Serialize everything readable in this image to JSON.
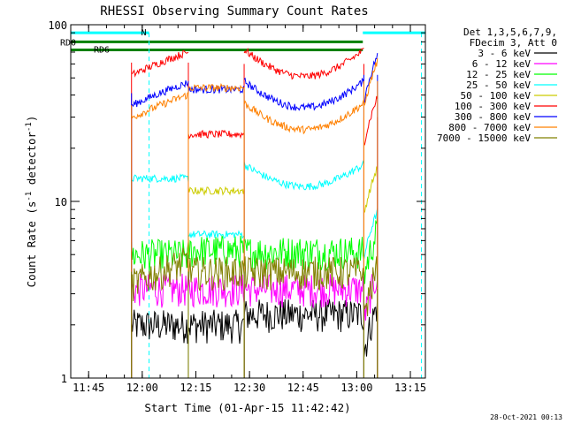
{
  "chart_data": {
    "type": "line",
    "title": "RHESSI Observing Summary Count Rates",
    "xlabel": "Start Time (01-Apr-15 11:42:42)",
    "ylabel": "Count Rate (s⁻¹ detector⁻¹)",
    "ylabel_parts": [
      "Count Rate (s",
      "-1",
      " detector",
      "-1",
      ")"
    ],
    "yscale": "log",
    "xlim_min": [
      -2.7,
      96.5
    ],
    "ylim": [
      1,
      100
    ],
    "x_ticks": [
      {
        "min": 2.3,
        "label": "11:45"
      },
      {
        "min": 17.3,
        "label": "12:00"
      },
      {
        "min": 32.3,
        "label": "12:15"
      },
      {
        "min": 47.3,
        "label": "12:30"
      },
      {
        "min": 62.3,
        "label": "12:45"
      },
      {
        "min": 77.3,
        "label": "13:00"
      },
      {
        "min": 92.3,
        "label": "13:15"
      }
    ],
    "y_ticks": [
      {
        "value": 1,
        "label": "1"
      },
      {
        "value": 10,
        "label": "10"
      },
      {
        "value": 100,
        "label": "100"
      }
    ],
    "legend_header": [
      "Det 1,3,5,6,7,9,",
      "FDecim 3, Att 0"
    ],
    "legend_placement": "right",
    "timestamp": "28-Oct-2021 00:13",
    "flags": [
      {
        "label": "N",
        "color": "#00ffff",
        "segments": [
          [
            -2.7,
            19.2
          ],
          [
            79.0,
            96.5
          ]
        ],
        "y": 90
      },
      {
        "label": "RD0",
        "color": "#008000",
        "segments": [
          [
            -2.7,
            79.0
          ]
        ],
        "y": 80
      },
      {
        "label": "RD6",
        "color": "#008000",
        "segments": [
          [
            -2.7,
            79.0
          ]
        ],
        "y": 72
      }
    ],
    "night_markers_min": [
      19.2,
      95.4
    ],
    "intervals_min": [
      [
        14.3,
        30.2
      ],
      [
        30.2,
        45.8
      ],
      [
        45.8,
        79.3
      ],
      [
        79.3,
        83.1
      ]
    ],
    "series": [
      {
        "name": "3 - 6 keV",
        "color": "#000000",
        "values": [
          2.0,
          2.0,
          2.3,
          2.0
        ]
      },
      {
        "name": "6 - 12 keV",
        "color": "#ff00ff",
        "values": [
          3.2,
          3.2,
          3.2,
          3.0
        ]
      },
      {
        "name": "12 - 25 keV",
        "color": "#00ff00",
        "values": [
          5.0,
          5.3,
          5.2,
          5.3
        ]
      },
      {
        "name": "25 - 50 keV",
        "color": "#00ffff",
        "values": [
          13.5,
          6.5,
          13.5,
          6.8
        ]
      },
      {
        "name": "50 - 100 keV",
        "color": "#cccc00",
        "values": [
          null,
          11.5,
          null,
          12.0
        ]
      },
      {
        "name": "100 - 300 keV",
        "color": "#ff0000",
        "values": [
          61.0,
          24.0,
          60.0,
          30.0
        ]
      },
      {
        "name": "300 - 800 keV",
        "color": "#0000ff",
        "values": [
          41.0,
          43.0,
          40.0,
          52.0
        ]
      },
      {
        "name": "800 - 7000 keV",
        "color": "#ff8000",
        "values": [
          35.0,
          44.0,
          30.0,
          48.0
        ]
      },
      {
        "name": "7000 - 15000 keV",
        "color": "#808000",
        "values": [
          4.0,
          4.0,
          4.0,
          3.2
        ]
      }
    ]
  }
}
